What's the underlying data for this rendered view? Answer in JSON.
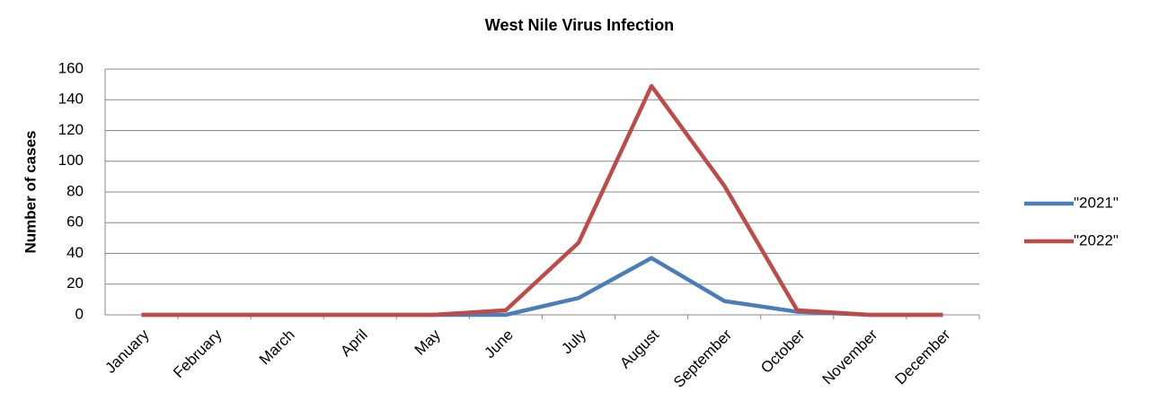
{
  "chart_data": {
    "type": "line",
    "title": "West Nile Virus Infection",
    "y_label": "Number of cases",
    "categories": [
      "January",
      "February",
      "March",
      "April",
      "May",
      "June",
      "July",
      "August",
      "September",
      "October",
      "November",
      "December"
    ],
    "series": [
      {
        "name": "\"2021\"",
        "color": "#4a7ebb",
        "values": [
          0,
          0,
          0,
          0,
          0,
          0,
          11,
          37,
          9,
          2,
          0,
          0
        ]
      },
      {
        "name": "\"2022\"",
        "color": "#be4b48",
        "values": [
          0,
          0,
          0,
          0,
          0,
          3,
          47,
          149,
          84,
          3,
          0,
          0
        ]
      }
    ],
    "ylim": [
      0,
      160
    ],
    "yticks": [
      0,
      20,
      40,
      60,
      80,
      100,
      120,
      140,
      160
    ],
    "grid": true,
    "legend": "right"
  }
}
